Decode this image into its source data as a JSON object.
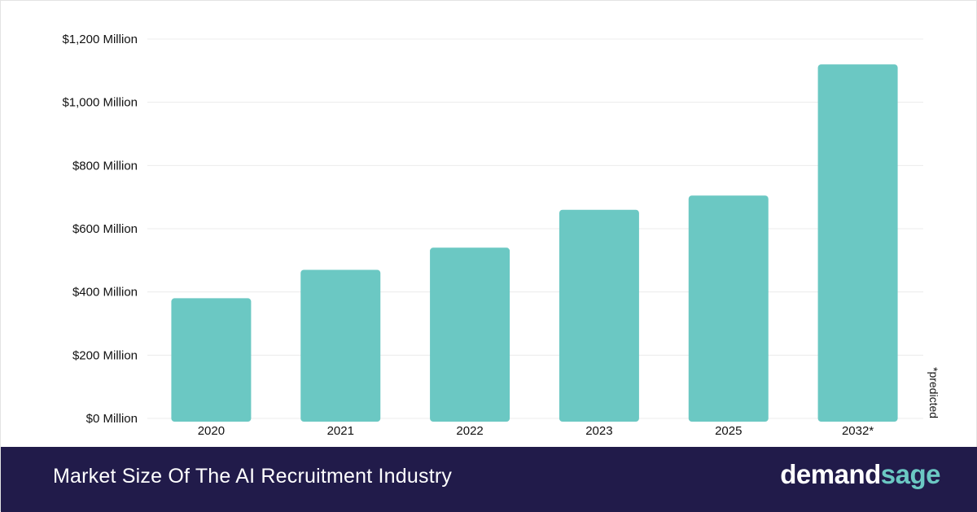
{
  "chart_data": {
    "type": "bar",
    "categories": [
      "2020",
      "2021",
      "2022",
      "2023",
      "2025",
      "2032*"
    ],
    "values": [
      380,
      470,
      540,
      660,
      705,
      1120
    ],
    "ylim": [
      0,
      1200
    ],
    "yticks": [
      0,
      200,
      400,
      600,
      800,
      1000,
      1200
    ],
    "ytick_labels": [
      "$0 Million",
      "$200 Million",
      "$400 Million",
      "$600 Million",
      "$800 Million",
      "$1,000 Million",
      "$1,200 Million"
    ],
    "grid": true,
    "bar_color": "#6bc8c3"
  },
  "note": "*predicted",
  "footer": {
    "title": "Market Size Of The AI Recruitment Industry",
    "brand_part1": "demand",
    "brand_part2": "sage",
    "background": "#211b4a"
  }
}
